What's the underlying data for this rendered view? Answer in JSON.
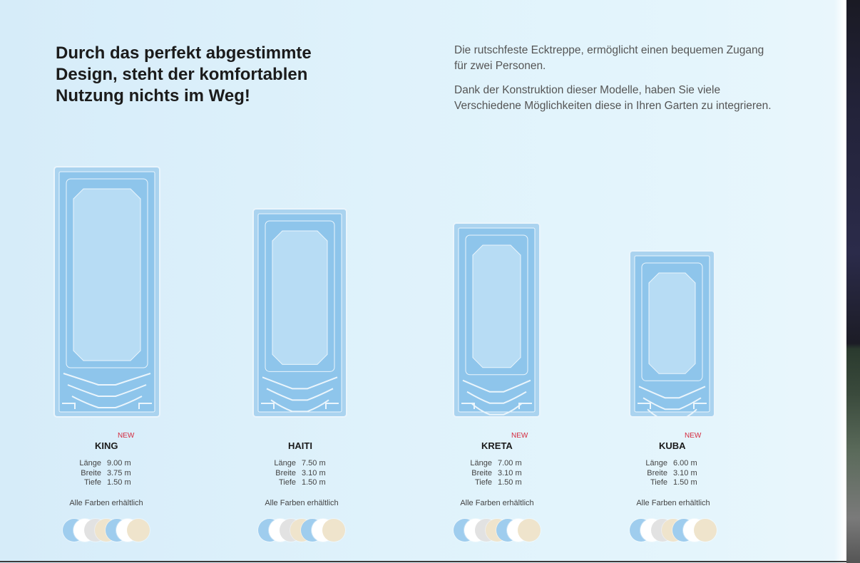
{
  "headline": "Durch das perfekt abgestimmte Design, steht der komfortablen Nutzung nichts im Weg!",
  "intro": [
    "Die rutschfeste Ecktreppe, ermöglicht einen bequemen Zugang für zwei Personen.",
    "Dank der Konstruktion dieser Modelle, haben Sie viele Verschiedene Möglichkeiten diese in Ihren Garten zu integrieren."
  ],
  "spec_labels": {
    "length": "Länge",
    "width": "Breite",
    "depth": "Tiefe"
  },
  "colors_label": "Alle Farben erhältlich",
  "new_label": "NEW",
  "swatch_colors": [
    "#9fcdee",
    "#ffffff",
    "#e2e2e2",
    "#efe4cc",
    "#9fcdee",
    "#ffffff",
    "#efe4cc"
  ],
  "pool_colors": {
    "outer": "#aad3ef",
    "wall": "#8ec5eb",
    "floor": "#b7dcf4",
    "line": "#eaf5fc"
  },
  "pools": [
    {
      "name": "KING",
      "is_new": true,
      "length": "9.00 m",
      "width": "3.75 m",
      "depth": "1.50 m"
    },
    {
      "name": "HAITI",
      "is_new": false,
      "length": "7.50 m",
      "width": "3.10 m",
      "depth": "1.50 m"
    },
    {
      "name": "KRETA",
      "is_new": true,
      "length": "7.00 m",
      "width": "3.10 m",
      "depth": "1.50 m"
    },
    {
      "name": "KUBA",
      "is_new": true,
      "length": "6.00 m",
      "width": "3.10 m",
      "depth": "1.50 m"
    }
  ]
}
